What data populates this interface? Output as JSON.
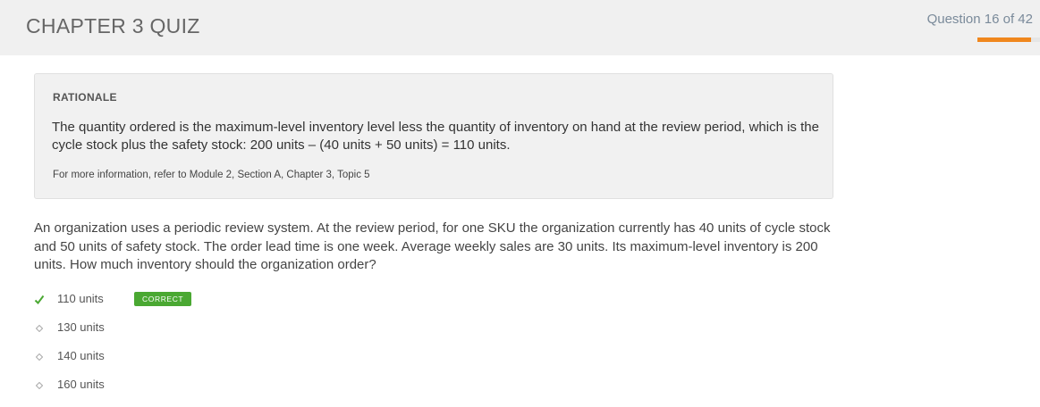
{
  "header": {
    "title": "CHAPTER 3 QUIZ",
    "question_counter": "Question 16 of 42",
    "progress_fraction": 0.85,
    "accent_color": "#f0871e"
  },
  "rationale": {
    "heading": "RATIONALE",
    "body": "The quantity ordered is the maximum-level inventory level less the quantity of inventory on hand at the review period, which is the cycle stock plus the safety stock: 200 units – (40 units + 50 units) = 110 units.",
    "reference": "For more information, refer to Module 2, Section A, Chapter 3, Topic 5"
  },
  "question": {
    "text": "An organization uses a periodic review system. At the review period, for one SKU the organization currently has 40 units of cycle stock and 50 units of safety stock. The order lead time is one week. Average weekly sales are 30 units. Its maximum-level inventory is 200 units. How much inventory should the organization order?"
  },
  "answers": [
    {
      "label": "110 units",
      "icon": "checkmark-icon",
      "badge": "CORRECT"
    },
    {
      "label": "130 units",
      "icon": "diamond-bullet-icon"
    },
    {
      "label": "140 units",
      "icon": "diamond-bullet-icon"
    },
    {
      "label": "160 units",
      "icon": "diamond-bullet-icon"
    }
  ],
  "colors": {
    "correct": "#4aa832",
    "header_bg": "#f0f0f0",
    "panel_bg": "#f1f1f1"
  }
}
